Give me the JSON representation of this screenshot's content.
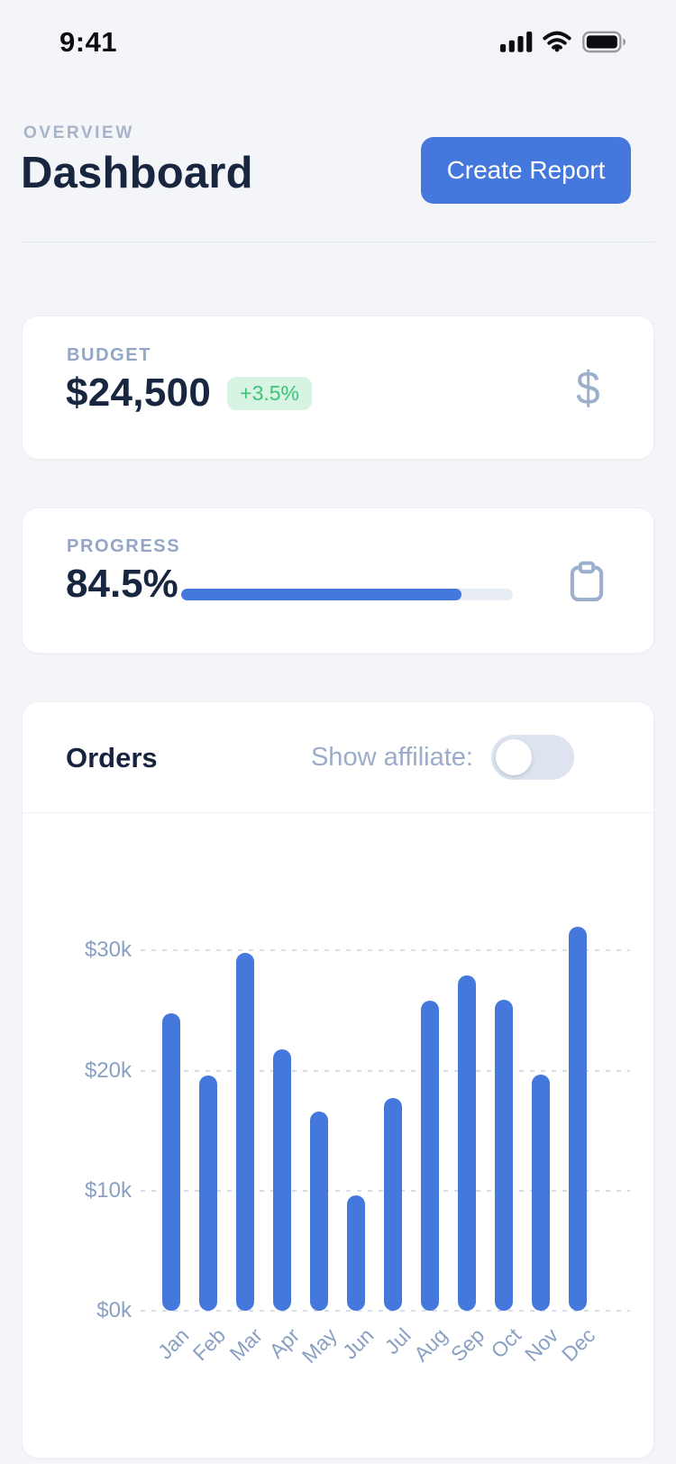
{
  "status_bar": {
    "time": "9:41"
  },
  "header": {
    "eyebrow": "OVERVIEW",
    "title": "Dashboard",
    "create_report_label": "Create Report"
  },
  "budget_card": {
    "label": "BUDGET",
    "value": "$24,500",
    "delta": "+3.5%",
    "icon": "dollar-icon",
    "icon_glyph": "$"
  },
  "progress_card": {
    "label": "PROGRESS",
    "value": "84.5%",
    "percent": 84.5,
    "icon": "clipboard-icon"
  },
  "orders_card": {
    "title": "Orders",
    "toggle_label": "Show affiliate:",
    "toggle_on": false
  },
  "icons": {
    "status_bar": [
      "cellular-signal-icon",
      "wifi-icon",
      "battery-icon"
    ]
  },
  "colors": {
    "accent": "#4478dc",
    "positive_text": "#3ec279",
    "positive_bg": "#d7f3e2",
    "bar": "#4478dc",
    "muted_label": "#93a6c6",
    "tick_label": "#8aa0c3",
    "dark_text": "#18263f",
    "background": "#f4f5f8"
  },
  "chart_data": {
    "type": "bar",
    "title": "Orders",
    "categories": [
      "Jan",
      "Feb",
      "Mar",
      "Apr",
      "May",
      "Jun",
      "Jul",
      "Aug",
      "Sep",
      "Oct",
      "Nov",
      "Dec"
    ],
    "values": [
      24.8,
      19.6,
      29.8,
      21.8,
      16.6,
      9.6,
      17.7,
      25.8,
      27.9,
      25.9,
      19.7,
      32.0
    ],
    "xlabel": "",
    "ylabel": "",
    "ylim": [
      0,
      34
    ],
    "yticks": [
      0,
      10,
      20,
      30
    ],
    "ytick_labels": [
      "$0k",
      "$10k",
      "$20k",
      "$30k"
    ],
    "unit": "USD thousands",
    "grid": "horizontal-dashed",
    "legend": "none",
    "bar_color": "#4478dc"
  }
}
